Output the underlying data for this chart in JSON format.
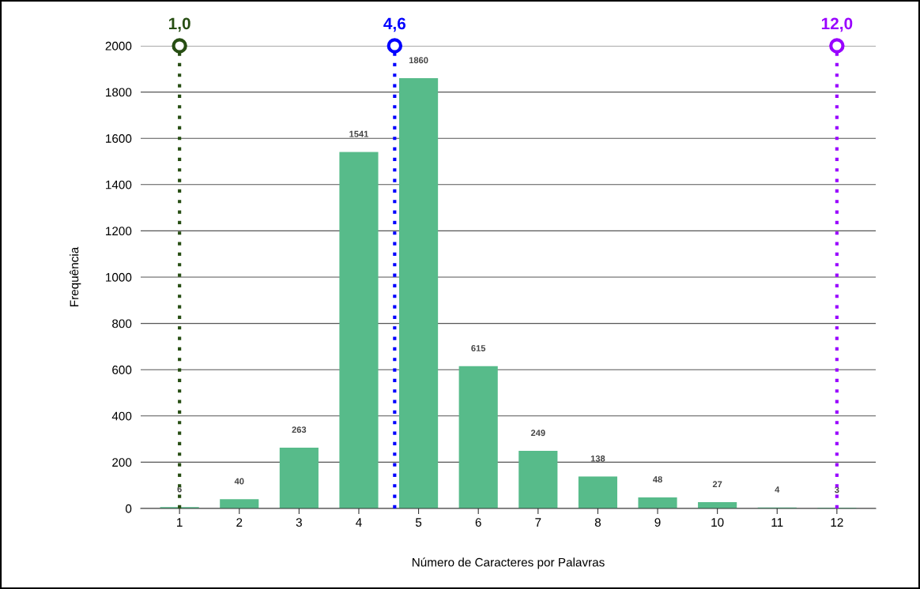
{
  "chart_data": {
    "type": "bar",
    "xlabel": "Número de Caracteres por Palavras",
    "ylabel": "Frequência",
    "x": [
      1,
      2,
      3,
      4,
      5,
      6,
      7,
      8,
      9,
      10,
      11,
      12
    ],
    "values": [
      6,
      40,
      263,
      1541,
      1860,
      615,
      249,
      138,
      48,
      27,
      4,
      3
    ],
    "color": "#57bb8a",
    "data_labels": true,
    "xlim": [
      0.35,
      12.65
    ],
    "xticks": [
      1,
      2,
      3,
      4,
      5,
      6,
      7,
      8,
      9,
      10,
      11,
      12
    ],
    "ylim": [
      0,
      2000
    ],
    "yticks": [
      0,
      200,
      400,
      600,
      800,
      1000,
      1200,
      1400,
      1600,
      1800,
      2000
    ],
    "grid": "y",
    "ref_lines": [
      {
        "axis": "x",
        "value": 1.0,
        "label": "1,0",
        "color": "#274e13",
        "line_style": "dotted"
      },
      {
        "axis": "x",
        "value": 4.6,
        "label": "4,6",
        "color": "#0000ff",
        "line_style": "dotted"
      },
      {
        "axis": "x",
        "value": 12.0,
        "label": "12,0",
        "color": "#9900ff",
        "line_style": "dotted"
      }
    ]
  }
}
